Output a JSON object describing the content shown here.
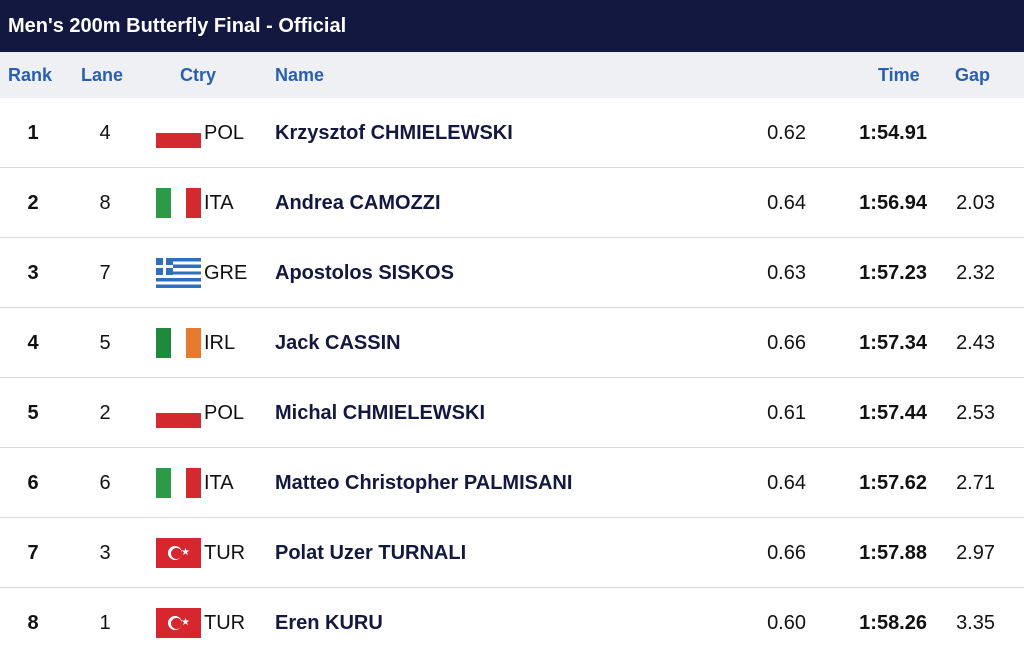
{
  "title": "Men's 200m Butterfly Final  -  Official",
  "columns": {
    "rank": "Rank",
    "lane": "Lane",
    "ctry": "Ctry",
    "name": "Name",
    "time": "Time",
    "gap": "Gap"
  },
  "rows": [
    {
      "rank": "1",
      "lane": "4",
      "ctry": "POL",
      "flag": "poland-flag-icon",
      "name": "Krzysztof CHMIELEWSKI",
      "rt": "0.62",
      "time": "1:54.91",
      "gap": ""
    },
    {
      "rank": "2",
      "lane": "8",
      "ctry": "ITA",
      "flag": "italy-flag-icon",
      "name": "Andrea CAMOZZI",
      "rt": "0.64",
      "time": "1:56.94",
      "gap": "2.03"
    },
    {
      "rank": "3",
      "lane": "7",
      "ctry": "GRE",
      "flag": "greece-flag-icon",
      "name": "Apostolos SISKOS",
      "rt": "0.63",
      "time": "1:57.23",
      "gap": "2.32"
    },
    {
      "rank": "4",
      "lane": "5",
      "ctry": "IRL",
      "flag": "ireland-flag-icon",
      "name": "Jack CASSIN",
      "rt": "0.66",
      "time": "1:57.34",
      "gap": "2.43"
    },
    {
      "rank": "5",
      "lane": "2",
      "ctry": "POL",
      "flag": "poland-flag-icon",
      "name": "Michal CHMIELEWSKI",
      "rt": "0.61",
      "time": "1:57.44",
      "gap": "2.53"
    },
    {
      "rank": "6",
      "lane": "6",
      "ctry": "ITA",
      "flag": "italy-flag-icon",
      "name": "Matteo Christopher PALMISANI",
      "rt": "0.64",
      "time": "1:57.62",
      "gap": "2.71"
    },
    {
      "rank": "7",
      "lane": "3",
      "ctry": "TUR",
      "flag": "turkey-flag-icon",
      "name": "Polat Uzer TURNALI",
      "rt": "0.66",
      "time": "1:57.88",
      "gap": "2.97"
    },
    {
      "rank": "8",
      "lane": "1",
      "ctry": "TUR",
      "flag": "turkey-flag-icon",
      "name": "Eren KURU",
      "rt": "0.60",
      "time": "1:58.26",
      "gap": "3.35"
    }
  ],
  "colors": {
    "title_bg": "#12183f",
    "header_bg": "#eef0f4",
    "header_text": "#2a5fb0",
    "name_text": "#12183f"
  }
}
